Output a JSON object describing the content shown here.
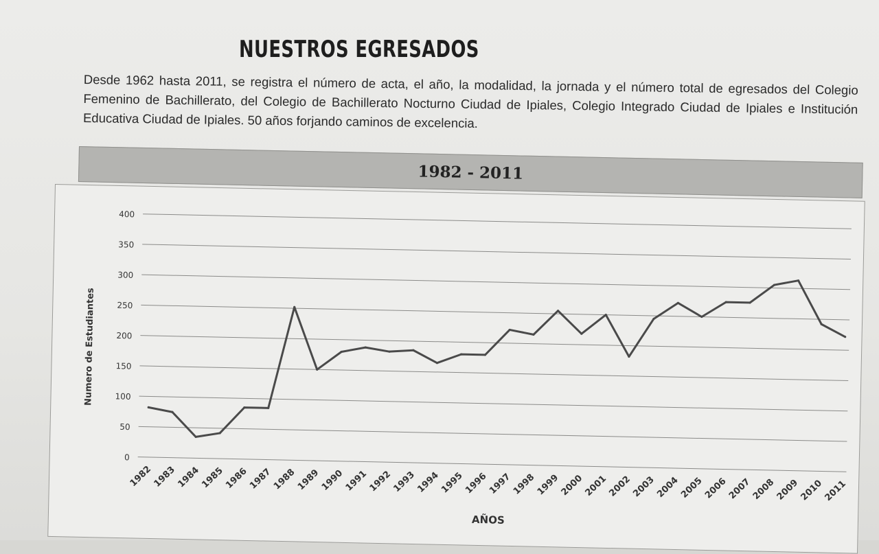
{
  "header": {
    "title": "NUESTROS EGRESADOS",
    "intro": "Desde 1962 hasta 2011, se registra el número de acta, el año, la modalidad, la jornada y el número total de egresados del Colegio Femenino de Bachillerato, del Colegio de Bachillerato Nocturno Ciudad de Ipiales, Colegio Integrado Ciudad de Ipiales e Institución Educativa Ciudad de Ipiales. 50 años forjando caminos de excelencia."
  },
  "chart_data": {
    "type": "line",
    "title": "1982 - 2011",
    "xlabel": "AÑOS",
    "ylabel": "Numero de Estudiantes",
    "ylim": [
      0,
      400
    ],
    "yticks": [
      0,
      50,
      100,
      150,
      200,
      250,
      300,
      350,
      400
    ],
    "categories": [
      "1982",
      "1983",
      "1984",
      "1985",
      "1986",
      "1987",
      "1988",
      "1989",
      "1990",
      "1991",
      "1992",
      "1993",
      "1994",
      "1995",
      "1996",
      "1997",
      "1998",
      "1999",
      "2000",
      "2001",
      "2002",
      "2003",
      "2004",
      "2005",
      "2006",
      "2007",
      "2008",
      "2009",
      "2010",
      "2011"
    ],
    "series": [
      {
        "values": [
          82,
          75,
          35,
          42,
          85,
          85,
          252,
          150,
          180,
          188,
          182,
          185,
          165,
          180,
          180,
          222,
          215,
          255,
          218,
          250,
          182,
          245,
          272,
          250,
          275,
          275,
          305,
          313,
          242,
          222
        ]
      }
    ],
    "grid": true,
    "legend": "none",
    "colors": {
      "line": "#4a4a4a",
      "grid": "#8a8a88",
      "text": "#333333"
    }
  }
}
